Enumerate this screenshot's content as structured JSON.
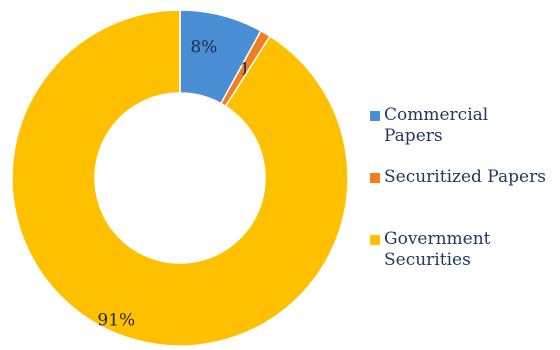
{
  "chart_data": {
    "type": "pie",
    "donut": true,
    "categories": [
      "Commercial Papers",
      "Securitized Papers",
      "Government Securities"
    ],
    "values": [
      8,
      1,
      91
    ],
    "data_labels": [
      "8%",
      "1%",
      "91%"
    ],
    "colors": [
      "#4a8fd6",
      "#f07f21",
      "#ffc000"
    ],
    "legend_position": "right",
    "legend": [
      {
        "lines": [
          "Commercial",
          "Papers"
        ],
        "color": "#4a8fd6"
      },
      {
        "lines": [
          "Securitized Papers"
        ],
        "color": "#f07f21"
      },
      {
        "lines": [
          "Government",
          "Securities"
        ],
        "color": "#ffc000"
      }
    ]
  }
}
